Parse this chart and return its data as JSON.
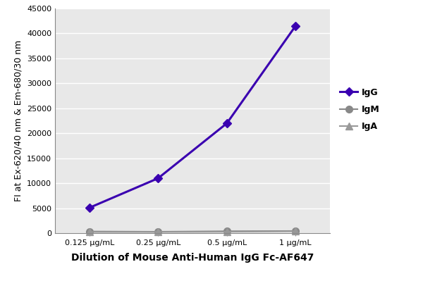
{
  "x_labels": [
    "0.125 μg/mL",
    "0.25 μg/mL",
    "0.5 μg/mL",
    "1 μg/mL"
  ],
  "x_positions": [
    1,
    2,
    3,
    4
  ],
  "series": [
    {
      "name": "IgG",
      "values": [
        5100,
        11000,
        22000,
        41500
      ],
      "color": "#3a00b0",
      "marker": "D",
      "markersize": 6,
      "linewidth": 2.2
    },
    {
      "name": "IgM",
      "values": [
        350,
        300,
        400,
        450
      ],
      "color": "#888888",
      "marker": "o",
      "markersize": 7,
      "linewidth": 1.5
    },
    {
      "name": "IgA",
      "values": [
        250,
        250,
        300,
        400
      ],
      "color": "#999999",
      "marker": "^",
      "markersize": 7,
      "linewidth": 1.5
    }
  ],
  "ylabel": "FI at Ex-620/40 nm & Em-680/30 nm",
  "xlabel": "Dilution of Mouse Anti-Human IgG Fc-AF647",
  "ylim": [
    0,
    45000
  ],
  "yticks": [
    0,
    5000,
    10000,
    15000,
    20000,
    25000,
    30000,
    35000,
    40000,
    45000
  ],
  "plot_bg_color": "#e8e8e8",
  "fig_bg_color": "#ffffff",
  "grid_color": "#ffffff",
  "axis_fontsize": 9,
  "tick_fontsize": 8,
  "legend_fontsize": 9
}
